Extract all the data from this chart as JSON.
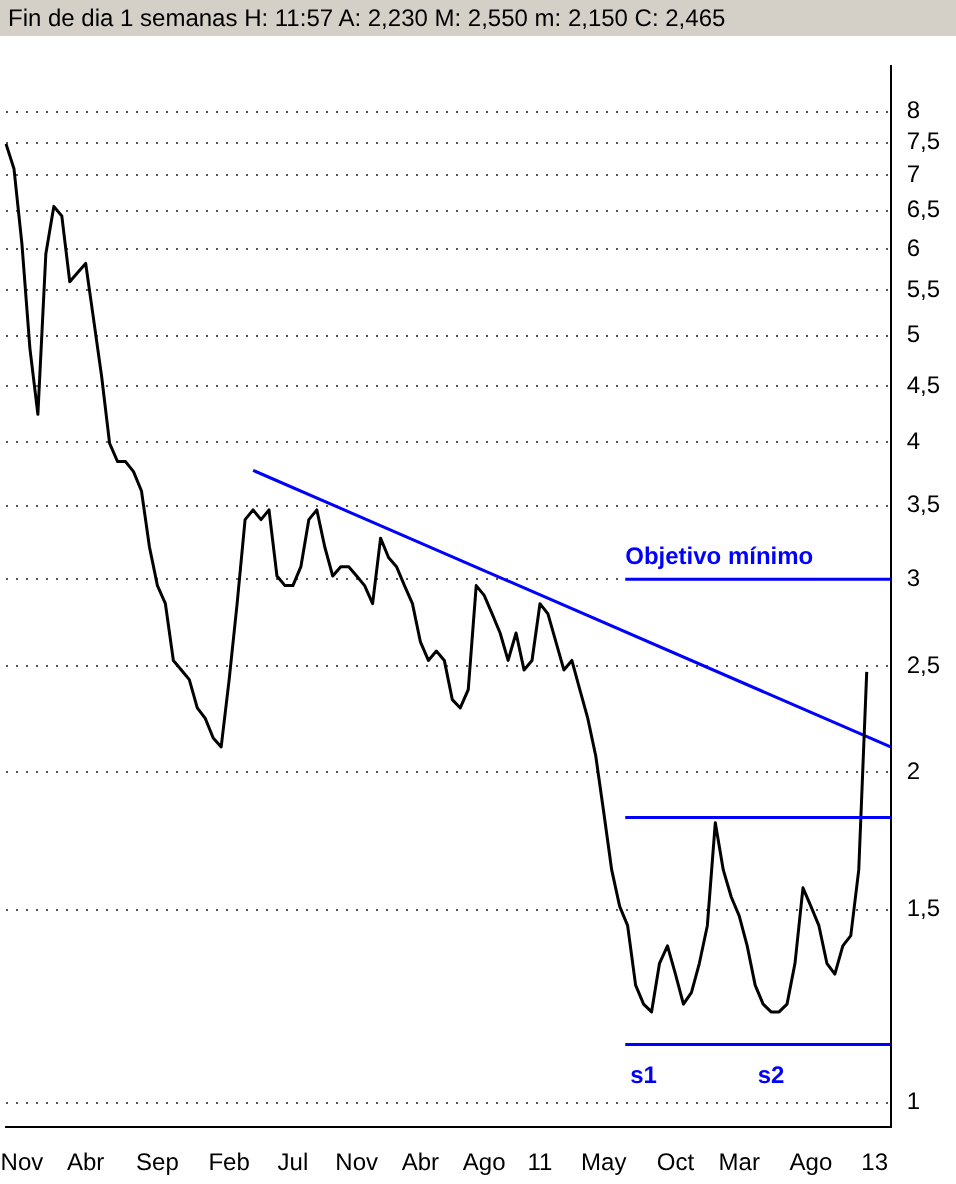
{
  "chart_data": {
    "type": "line",
    "title": "Fin de dia 1 semanas  H: 11:57  A: 2,230  M: 2,550  m: 2,150  C: 2,465",
    "categories": [
      null,
      null,
      "Nov",
      null,
      null,
      null,
      null,
      null,
      null,
      null,
      "Abr",
      null,
      null,
      null,
      null,
      null,
      null,
      null,
      null,
      "Sep",
      null,
      null,
      null,
      null,
      null,
      null,
      null,
      null,
      "Feb",
      null,
      null,
      null,
      null,
      null,
      null,
      null,
      "Jul",
      null,
      null,
      null,
      null,
      null,
      null,
      null,
      "Nov",
      null,
      null,
      null,
      null,
      null,
      null,
      null,
      "Abr",
      null,
      null,
      null,
      null,
      null,
      null,
      null,
      "Ago",
      null,
      null,
      null,
      null,
      null,
      null,
      "11",
      null,
      null,
      null,
      null,
      null,
      null,
      null,
      "May",
      null,
      null,
      null,
      null,
      null,
      null,
      null,
      null,
      "Oct",
      null,
      null,
      null,
      null,
      null,
      null,
      null,
      "Mar",
      null,
      null,
      null,
      null,
      null,
      null,
      null,
      null,
      "Ago",
      null,
      null,
      null,
      null,
      null,
      null,
      null,
      "13",
      null,
      null
    ],
    "series": [
      {
        "color": "#000000",
        "values": [
          7.48,
          7.1,
          6.06,
          4.87,
          4.24,
          5.94,
          6.56,
          6.43,
          5.6,
          5.71,
          5.82,
          5.17,
          4.59,
          3.99,
          3.84,
          3.84,
          3.76,
          3.61,
          3.21,
          2.96,
          2.85,
          2.53,
          2.48,
          2.43,
          2.29,
          2.24,
          2.15,
          2.11,
          2.43,
          2.85,
          3.4,
          3.47,
          3.4,
          3.47,
          3.02,
          2.96,
          2.96,
          3.08,
          3.4,
          3.47,
          3.21,
          3.02,
          3.08,
          3.08,
          3.02,
          2.96,
          2.85,
          3.27,
          3.14,
          3.08,
          2.96,
          2.85,
          2.63,
          2.53,
          2.58,
          2.53,
          2.33,
          2.29,
          2.38,
          2.96,
          2.9,
          2.79,
          2.68,
          2.53,
          2.68,
          2.48,
          2.53,
          2.85,
          2.79,
          2.63,
          2.48,
          2.53,
          2.38,
          2.24,
          2.07,
          1.84,
          1.63,
          1.51,
          1.45,
          1.28,
          1.23,
          1.21,
          1.34,
          1.39,
          1.31,
          1.23,
          1.26,
          1.34,
          1.45,
          1.8,
          1.63,
          1.54,
          1.48,
          1.39,
          1.28,
          1.23,
          1.21,
          1.21,
          1.23,
          1.34,
          1.57,
          1.51,
          1.45,
          1.34,
          1.31,
          1.39,
          1.42,
          1.63,
          2.47,
          null,
          null,
          null
        ]
      },
      {
        "type": "line",
        "color": "#0000ff",
        "values": [
          null,
          null,
          null,
          null,
          null,
          null,
          null,
          null,
          null,
          null,
          null,
          null,
          null,
          null,
          null,
          null,
          null,
          null,
          null,
          null,
          null,
          null,
          null,
          null,
          null,
          null,
          null,
          null,
          null,
          null,
          null,
          3.77,
          null,
          null,
          null,
          null,
          null,
          null,
          null,
          null,
          null,
          null,
          null,
          null,
          null,
          null,
          null,
          null,
          null,
          null,
          null,
          null,
          null,
          null,
          null,
          null,
          null,
          null,
          null,
          null,
          null,
          null,
          null,
          null,
          null,
          null,
          null,
          null,
          null,
          null,
          null,
          null,
          null,
          null,
          null,
          null,
          null,
          null,
          null,
          null,
          null,
          null,
          null,
          null,
          null,
          null,
          null,
          null,
          null,
          null,
          null,
          null,
          null,
          null,
          null,
          null,
          null,
          null,
          null,
          null,
          null,
          null,
          null,
          null,
          null,
          null,
          null,
          null,
          null,
          null,
          null,
          2.11
        ]
      }
    ],
    "ylim": [
      0.95,
      8.8
    ],
    "yticks": [
      1,
      {
        "value": 1.5,
        "label": "1,5"
      },
      2,
      {
        "value": 2.5,
        "label": "2,5"
      },
      3,
      {
        "value": 3.5,
        "label": "3,5"
      },
      4,
      {
        "value": 4.5,
        "label": "4,5"
      },
      5,
      {
        "value": 5.5,
        "label": "5,5"
      },
      6,
      {
        "value": 6.5,
        "label": "6,5"
      },
      7,
      {
        "value": 7.5,
        "label": "7,5"
      },
      8
    ],
    "log": true,
    "grid": "y",
    "legend": false,
    "marker": "none",
    "line_style": "solid",
    "ref_lines": [
      {
        "axis": "y",
        "value": 3,
        "label": "Objetivo mínimo",
        "color": "#0000ff"
      },
      {
        "axis": "y",
        "value": 1.82,
        "color": "#0000ff"
      },
      {
        "axis": "y",
        "value": 1.13,
        "color": "#0000ff"
      }
    ],
    "annotations": [
      "s1",
      "s2"
    ]
  }
}
